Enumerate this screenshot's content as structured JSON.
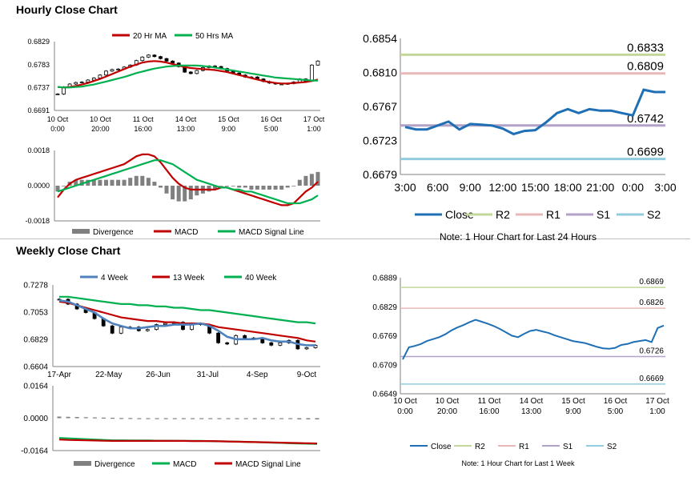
{
  "titles": {
    "hourly": "Hourly Close Chart",
    "weekly": "Weekly Close Chart"
  },
  "colors": {
    "ma_fast": "#c00000",
    "ma_slow": "#00b050",
    "ma_4": "#4f81bd",
    "close": "#1f6fb5",
    "r2": "#c4d79b",
    "r1": "#e6b9b8",
    "s1": "#b3a2c7",
    "s2": "#93cddd",
    "divergence": "#808080"
  },
  "chart_data": [
    {
      "id": "hourly_price",
      "type": "line",
      "title": "",
      "legend": [
        "20 Hr MA",
        "50 Hrs MA"
      ],
      "legend_placement": "top",
      "ylim": [
        0.6691,
        0.6829
      ],
      "yticks": [
        "0.6829",
        "0.6783",
        "0.6737",
        "0.6691"
      ],
      "xticks": [
        [
          "10 Oct",
          "0:00"
        ],
        [
          "10 Oct",
          "20:00"
        ],
        [
          "11 Oct",
          "16:00"
        ],
        [
          "14 Oct",
          "13:00"
        ],
        [
          "15 Oct",
          "9:00"
        ],
        [
          "16 Oct",
          "5:00"
        ],
        [
          "17 Oct",
          "1:00"
        ]
      ],
      "close": [
        0.6724,
        0.6738,
        0.6744,
        0.6747,
        0.6748,
        0.6752,
        0.6756,
        0.6762,
        0.677,
        0.6773,
        0.6774,
        0.6778,
        0.6782,
        0.6791,
        0.6798,
        0.6802,
        0.6799,
        0.6795,
        0.679,
        0.6786,
        0.6779,
        0.6768,
        0.6765,
        0.6771,
        0.6777,
        0.678,
        0.6779,
        0.6775,
        0.677,
        0.6766,
        0.6762,
        0.6758,
        0.6758,
        0.6754,
        0.6749,
        0.6746,
        0.6744,
        0.6744,
        0.6745,
        0.6748,
        0.6754,
        0.675,
        0.6782,
        0.679
      ],
      "series": [
        {
          "name": "20 Hr MA",
          "values": [
            0.6738,
            0.6737,
            0.6738,
            0.674,
            0.6743,
            0.6746,
            0.675,
            0.6754,
            0.6759,
            0.6764,
            0.6769,
            0.6774,
            0.6779,
            0.6783,
            0.6787,
            0.6789,
            0.679,
            0.6789,
            0.6787,
            0.6784,
            0.6781,
            0.6778,
            0.6776,
            0.6775,
            0.6774,
            0.6773,
            0.6772,
            0.677,
            0.6768,
            0.6765,
            0.6762,
            0.6759,
            0.6756,
            0.6753,
            0.675,
            0.6748,
            0.6746,
            0.6745,
            0.6745,
            0.6746,
            0.6747,
            0.6748,
            0.675,
            0.6753
          ]
        },
        {
          "name": "50 Hrs MA",
          "values": [
            0.6738,
            0.6737,
            0.6737,
            0.6738,
            0.6739,
            0.6741,
            0.6743,
            0.6746,
            0.6749,
            0.6752,
            0.6755,
            0.6758,
            0.6762,
            0.6766,
            0.6769,
            0.6772,
            0.6775,
            0.6777,
            0.6779,
            0.678,
            0.6781,
            0.6781,
            0.6781,
            0.6781,
            0.678,
            0.6779,
            0.6777,
            0.6775,
            0.6773,
            0.6771,
            0.6769,
            0.6767,
            0.6765,
            0.6763,
            0.6761,
            0.6759,
            0.6757,
            0.6756,
            0.6755,
            0.6754,
            0.6753,
            0.6752,
            0.6751,
            0.6751
          ]
        }
      ]
    },
    {
      "id": "hourly_macd",
      "type": "line",
      "title": "",
      "legend": [
        "Divergence",
        "MACD",
        "MACD Signal Line"
      ],
      "legend_placement": "bottom",
      "ylim": [
        -0.0018,
        0.0018
      ],
      "yticks": [
        "0.0018",
        "0.0000",
        "-0.0018"
      ],
      "series": [
        {
          "name": "MACD",
          "values": [
            -0.0006,
            -0.0002,
            0.0001,
            0.0003,
            0.0004,
            0.0005,
            0.0006,
            0.0007,
            0.0008,
            0.0009,
            0.001,
            0.0011,
            0.0013,
            0.0015,
            0.0016,
            0.0016,
            0.0015,
            0.0012,
            0.0008,
            0.0004,
            0.0001,
            -0.0001,
            -0.0002,
            -0.0002,
            -0.0002,
            -0.0002,
            -0.0002,
            -0.0001,
            -0.0001,
            -0.0002,
            -0.0003,
            -0.0004,
            -0.0005,
            -0.0006,
            -0.0007,
            -0.0008,
            -0.0009,
            -0.001,
            -0.001,
            -0.0009,
            -0.0006,
            -0.0003,
            -0.0001,
            0.0002
          ]
        },
        {
          "name": "MACD Signal Line",
          "values": [
            -0.0003,
            -0.0002,
            -0.0001,
            0.0,
            0.0001,
            0.0002,
            0.0003,
            0.0004,
            0.0005,
            0.0006,
            0.0007,
            0.0008,
            0.0009,
            0.001,
            0.0011,
            0.0012,
            0.0013,
            0.0013,
            0.0012,
            0.0011,
            0.0009,
            0.0007,
            0.0005,
            0.0003,
            0.0002,
            0.0001,
            0.0,
            -0.0001,
            -0.0001,
            -0.0002,
            -0.0002,
            -0.0003,
            -0.0003,
            -0.0004,
            -0.0005,
            -0.0006,
            -0.0007,
            -0.0008,
            -0.0009,
            -0.0009,
            -0.0009,
            -0.0008,
            -0.0007,
            -0.0005
          ]
        }
      ]
    },
    {
      "id": "hourly_24h",
      "type": "line",
      "title": "",
      "legend": [
        "Close",
        "R2",
        "R1",
        "S1",
        "S2"
      ],
      "legend_placement": "bottom",
      "note": "Note: 1 Hour Chart for Last 24 Hours",
      "ylim": [
        0.6679,
        0.6854
      ],
      "yticks": [
        "0.6854",
        "0.6810",
        "0.6767",
        "0.6723",
        "0.6679"
      ],
      "xticks": [
        "3:00",
        "6:00",
        "9:00",
        "12:00",
        "15:00",
        "18:00",
        "21:00",
        "0:00",
        "3:00"
      ],
      "close": [
        0.674,
        0.6737,
        0.6737,
        0.6742,
        0.6747,
        0.6737,
        0.6744,
        0.6743,
        0.6742,
        0.6738,
        0.6731,
        0.6735,
        0.6736,
        0.6746,
        0.6758,
        0.6763,
        0.6758,
        0.6763,
        0.6761,
        0.6761,
        0.6758,
        0.6755,
        0.6788,
        0.6785,
        0.6785
      ],
      "levels": [
        {
          "name": "R2",
          "value": 0.6833,
          "label": "0.6833"
        },
        {
          "name": "R1",
          "value": 0.6809,
          "label": "0.6809"
        },
        {
          "name": "S1",
          "value": 0.6742,
          "label": "0.6742"
        },
        {
          "name": "S2",
          "value": 0.6699,
          "label": "0.6699"
        }
      ]
    },
    {
      "id": "weekly_price",
      "type": "line",
      "title": "",
      "legend": [
        "4 Week",
        "13 Week",
        "40 Week"
      ],
      "legend_placement": "top",
      "ylim": [
        0.6604,
        0.7278
      ],
      "yticks": [
        "0.7278",
        "0.7053",
        "0.6829",
        "0.6604"
      ],
      "xticks": [
        "17-Apr",
        "22-May",
        "26-Jun",
        "31-Jul",
        "4-Sep",
        "9-Oct"
      ],
      "close": [
        0.716,
        0.712,
        0.708,
        0.705,
        0.7,
        0.694,
        0.688,
        0.693,
        0.693,
        0.69,
        0.691,
        0.695,
        0.696,
        0.697,
        0.691,
        0.696,
        0.695,
        0.688,
        0.68,
        0.679,
        0.686,
        0.684,
        0.684,
        0.68,
        0.678,
        0.68,
        0.682,
        0.675,
        0.676,
        0.678
      ],
      "series": [
        {
          "name": "4 Week",
          "values": [
            0.715,
            0.714,
            0.711,
            0.708,
            0.705,
            0.7,
            0.696,
            0.694,
            0.692,
            0.692,
            0.693,
            0.694,
            0.694,
            0.695,
            0.695,
            0.695,
            0.696,
            0.694,
            0.69,
            0.685,
            0.683,
            0.683,
            0.683,
            0.684,
            0.682,
            0.681,
            0.681,
            0.679,
            0.678,
            0.678
          ]
        },
        {
          "name": "13 Week",
          "values": [
            0.714,
            0.713,
            0.711,
            0.709,
            0.707,
            0.705,
            0.703,
            0.701,
            0.7,
            0.699,
            0.698,
            0.698,
            0.697,
            0.697,
            0.696,
            0.696,
            0.696,
            0.695,
            0.693,
            0.692,
            0.691,
            0.69,
            0.689,
            0.688,
            0.687,
            0.686,
            0.685,
            0.684,
            0.682,
            0.681
          ]
        },
        {
          "name": "40 Week",
          "values": [
            0.718,
            0.718,
            0.717,
            0.716,
            0.715,
            0.714,
            0.713,
            0.712,
            0.712,
            0.711,
            0.711,
            0.71,
            0.71,
            0.709,
            0.709,
            0.708,
            0.707,
            0.707,
            0.706,
            0.705,
            0.704,
            0.703,
            0.702,
            0.701,
            0.7,
            0.699,
            0.698,
            0.697,
            0.697,
            0.696
          ]
        }
      ]
    },
    {
      "id": "weekly_macd",
      "type": "line",
      "title": "",
      "legend": [
        "Divergence",
        "MACD",
        "MACD Signal Line"
      ],
      "legend_placement": "bottom",
      "ylim": [
        -0.0164,
        0.0164
      ],
      "yticks": [
        "0.0164",
        "0.0000",
        "-0.0164"
      ],
      "divergence": [
        0.0008,
        0.0007,
        0.0006,
        0.0005,
        0.0004,
        0.0003,
        0.0002,
        0.0001,
        0.0001,
        0.0,
        0.0,
        -0.0001,
        -0.0001,
        -0.0001,
        -0.0002,
        -0.0002,
        -0.0002,
        -0.0003,
        -0.0003,
        -0.0003,
        -0.0004,
        -0.0004,
        -0.0004,
        -0.0005,
        -0.0005,
        -0.0005,
        -0.0005,
        -0.0006,
        -0.0006,
        -0.0006
      ],
      "series": [
        {
          "name": "MACD",
          "values": [
            -0.01,
            -0.0102,
            -0.0104,
            -0.0106,
            -0.0108,
            -0.011,
            -0.0112,
            -0.0112,
            -0.0113,
            -0.0113,
            -0.0113,
            -0.0114,
            -0.0114,
            -0.0114,
            -0.0115,
            -0.0115,
            -0.0115,
            -0.0116,
            -0.0117,
            -0.0118,
            -0.0119,
            -0.012,
            -0.0121,
            -0.0122,
            -0.0124,
            -0.0125,
            -0.0127,
            -0.0128,
            -0.0129,
            -0.013
          ]
        },
        {
          "name": "MACD Signal Line",
          "values": [
            -0.0108,
            -0.011,
            -0.0111,
            -0.0112,
            -0.0113,
            -0.0114,
            -0.0115,
            -0.0115,
            -0.0115,
            -0.0115,
            -0.0115,
            -0.0115,
            -0.0115,
            -0.0115,
            -0.0115,
            -0.0116,
            -0.0116,
            -0.0116,
            -0.0117,
            -0.0118,
            -0.0119,
            -0.012,
            -0.0121,
            -0.0122,
            -0.0123,
            -0.0124,
            -0.0125,
            -0.0126,
            -0.0127,
            -0.0128
          ]
        }
      ]
    },
    {
      "id": "weekly_1w",
      "type": "line",
      "title": "",
      "legend": [
        "Close",
        "R2",
        "R1",
        "S1",
        "S2"
      ],
      "legend_placement": "bottom",
      "note": "Note: 1 Hour Chart for Last 1 Week",
      "ylim": [
        0.6649,
        0.6889
      ],
      "yticks": [
        "0.6889",
        "0.6829",
        "0.6769",
        "0.6709",
        "0.6649"
      ],
      "xticks": [
        [
          "10 Oct",
          "0:00"
        ],
        [
          "10 Oct",
          "20:00"
        ],
        [
          "11 Oct",
          "16:00"
        ],
        [
          "14 Oct",
          "13:00"
        ],
        [
          "15 Oct",
          "9:00"
        ],
        [
          "16 Oct",
          "5:00"
        ],
        [
          "17 Oct",
          "1:00"
        ]
      ],
      "close": [
        0.672,
        0.6745,
        0.6748,
        0.6752,
        0.6758,
        0.6762,
        0.6766,
        0.6772,
        0.678,
        0.6786,
        0.6791,
        0.6797,
        0.6802,
        0.6798,
        0.6794,
        0.6789,
        0.6783,
        0.6776,
        0.6769,
        0.6766,
        0.6773,
        0.6779,
        0.6781,
        0.6778,
        0.6775,
        0.677,
        0.6766,
        0.6762,
        0.6758,
        0.6756,
        0.6754,
        0.675,
        0.6746,
        0.6743,
        0.6742,
        0.6744,
        0.675,
        0.6752,
        0.6756,
        0.6758,
        0.676,
        0.6756,
        0.6785,
        0.679
      ],
      "levels": [
        {
          "name": "R2",
          "value": 0.6869,
          "label": "0.6869"
        },
        {
          "name": "R1",
          "value": 0.6826,
          "label": "0.6826"
        },
        {
          "name": "S1",
          "value": 0.6726,
          "label": "0.6726"
        },
        {
          "name": "S2",
          "value": 0.6669,
          "label": "0.6669"
        }
      ]
    }
  ]
}
